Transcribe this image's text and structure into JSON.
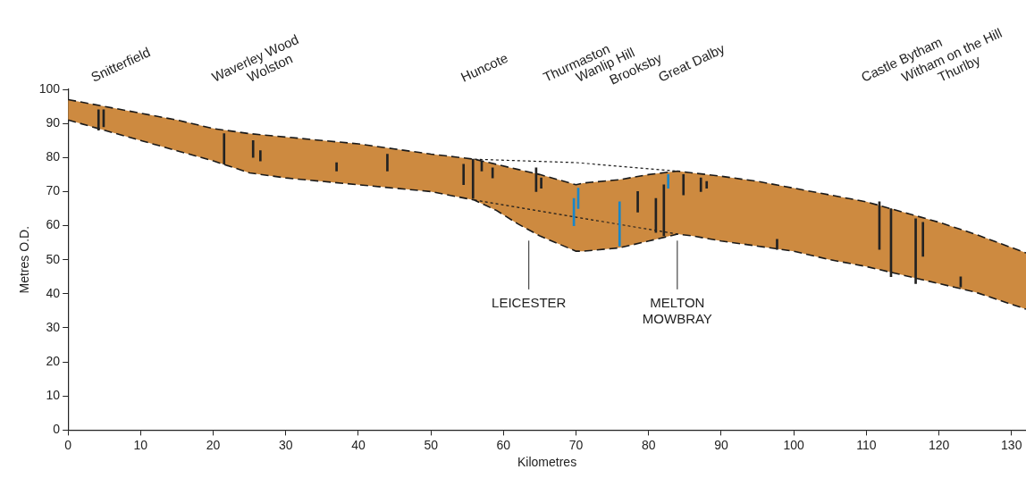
{
  "chart_data": {
    "type": "area",
    "xlabel": "Kilometres",
    "ylabel": "Metres O.D.",
    "xlim": [
      0,
      132
    ],
    "ylim": [
      0,
      100
    ],
    "xticks": [
      0,
      10,
      20,
      30,
      40,
      50,
      60,
      70,
      80,
      90,
      100,
      110,
      120,
      130
    ],
    "yticks": [
      0,
      10,
      20,
      30,
      40,
      50,
      60,
      70,
      80,
      90,
      100
    ],
    "line_style": "dashed",
    "series": [
      {
        "color": "#cd8a40",
        "x": [
          0,
          5,
          10,
          15,
          20,
          25,
          30,
          35,
          40,
          45,
          50,
          56,
          59,
          62,
          65,
          70,
          71,
          76,
          80,
          84,
          86,
          90,
          95,
          100,
          105,
          110,
          115,
          120,
          125,
          132
        ],
        "values": [
          97,
          95,
          93,
          91,
          88.5,
          87,
          86,
          85,
          84,
          82.5,
          81,
          79.5,
          78,
          76.5,
          75,
          72,
          72.5,
          73.5,
          75,
          76,
          75.5,
          74.5,
          73,
          71,
          69,
          67,
          64,
          61,
          57.5,
          52
        ]
      },
      {
        "type": "line",
        "color": "#1a1a1a",
        "x": [
          0,
          5,
          10,
          15,
          20,
          25,
          30,
          35,
          40,
          45,
          50,
          56,
          59,
          62,
          65,
          70,
          71,
          76,
          80,
          84,
          86,
          90,
          95,
          100,
          105,
          110,
          115,
          120,
          125,
          132
        ],
        "values": [
          91,
          88,
          85,
          82,
          79,
          75.5,
          74,
          73,
          72,
          71,
          70,
          67.5,
          64.5,
          60.5,
          57,
          52.5,
          52.5,
          53.5,
          55.5,
          57.5,
          57,
          55.5,
          54,
          52.5,
          50,
          48,
          45.5,
          43,
          40.5,
          35.5
        ]
      },
      {
        "type": "line",
        "color": "#1a1a1a",
        "line_style": "dotted",
        "x": [
          56,
          70,
          84
        ],
        "values": [
          79.5,
          78.5,
          76
        ]
      },
      {
        "type": "line",
        "color": "#1a1a1a",
        "line_style": "dotted",
        "x": [
          56,
          84
        ],
        "values": [
          67.5,
          57.5
        ]
      },
      {
        "type": "bar",
        "x": [
          4.2,
          4.9,
          21.5,
          25.5,
          26.5,
          37,
          44,
          54.5,
          55.8,
          57,
          58.5,
          64.5,
          65.2,
          69.7,
          70.3,
          76,
          78.5,
          81,
          82.1,
          82.7,
          84.8,
          87.2,
          88,
          97.7,
          111.8,
          113.4,
          116.8,
          117.8,
          123
        ],
        "base": [
          88,
          89,
          78,
          80,
          79,
          76,
          76,
          72,
          68,
          76,
          74,
          70,
          71,
          60,
          65,
          54,
          64,
          58,
          57,
          71,
          69,
          70,
          71,
          53,
          53,
          45,
          43,
          51,
          42
        ],
        "values": [
          6,
          5,
          9,
          5,
          3,
          2.5,
          5,
          6,
          11.5,
          3,
          3,
          7,
          3,
          8,
          6,
          13,
          6,
          10,
          15,
          4,
          6,
          4,
          2,
          3,
          14,
          20,
          19,
          10,
          3
        ],
        "colors": [
          "#222222",
          "#222222",
          "#222222",
          "#222222",
          "#222222",
          "#222222",
          "#222222",
          "#222222",
          "#222222",
          "#222222",
          "#222222",
          "#222222",
          "#222222",
          "#1a86c8",
          "#1a86c8",
          "#1a86c8",
          "#222222",
          "#222222",
          "#222222",
          "#1a86c8",
          "#222222",
          "#222222",
          "#222222",
          "#222222",
          "#222222",
          "#222222",
          "#222222",
          "#222222",
          "#222222"
        ]
      }
    ],
    "annotations": [
      "Snitterfield",
      "Waverley Wood",
      "Wolston",
      "Huncote",
      "Thurmaston",
      "Wanlip Hill",
      "Brooksby",
      "Great Dalby",
      "Castle Bytham",
      "Witham on the Hill",
      "Thurlby",
      "LEICESTER",
      "MELTON\nMOWBRAY"
    ]
  }
}
